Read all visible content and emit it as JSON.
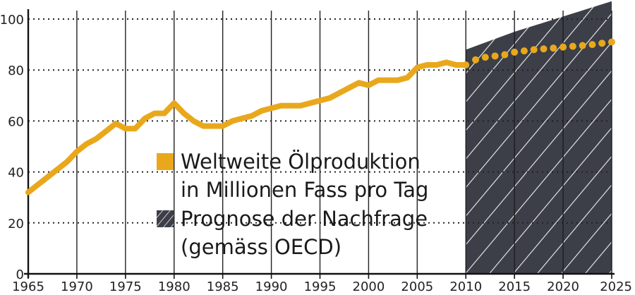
{
  "chart_data": {
    "type": "line",
    "title": "",
    "xlabel": "",
    "ylabel": "",
    "xlim": [
      1965,
      2025
    ],
    "ylim": [
      0,
      100
    ],
    "x_ticks": [
      1965,
      1970,
      1975,
      1980,
      1985,
      1990,
      1995,
      2000,
      2005,
      2010,
      2015,
      2020,
      2025
    ],
    "y_ticks": [
      0,
      20,
      40,
      60,
      80,
      100
    ],
    "grid": {
      "vertical": "solid",
      "horizontal": "dotted"
    },
    "legend_position": "center",
    "series": [
      {
        "name": "Weltweite Ölproduktion in Millionen Fass pro Tag",
        "style": "solid",
        "color": "#e9a81c",
        "x": [
          1965,
          1966,
          1967,
          1968,
          1969,
          1970,
          1971,
          1972,
          1973,
          1974,
          1975,
          1976,
          1977,
          1978,
          1979,
          1980,
          1981,
          1982,
          1983,
          1984,
          1985,
          1986,
          1987,
          1988,
          1989,
          1990,
          1991,
          1992,
          1993,
          1994,
          1995,
          1996,
          1997,
          1998,
          1999,
          2000,
          2001,
          2002,
          2003,
          2004,
          2005,
          2006,
          2007,
          2008,
          2009,
          2010
        ],
        "y": [
          32,
          35,
          38,
          41,
          44,
          48,
          51,
          53,
          56,
          59,
          57,
          57,
          61,
          63,
          63,
          67,
          63,
          60,
          58,
          58,
          58,
          60,
          61,
          62,
          64,
          65,
          66,
          66,
          66,
          67,
          68,
          69,
          71,
          73,
          75,
          74,
          76,
          76,
          76,
          77,
          81,
          82,
          82,
          83,
          82,
          82
        ]
      },
      {
        "name": "Prognose der Nachfrage (gemäss OECD)",
        "style": "dotted",
        "color": "#e9a81c",
        "x": [
          2010,
          2011,
          2012,
          2013,
          2014,
          2015,
          2016,
          2017,
          2018,
          2019,
          2020,
          2021,
          2022,
          2023,
          2024,
          2025
        ],
        "y": [
          82,
          84,
          85,
          85.5,
          86,
          87,
          87.5,
          88,
          88.3,
          88.6,
          89,
          89.3,
          89.6,
          90,
          90.5,
          91
        ]
      }
    ],
    "forecast_area": {
      "name": "Prognose der Nachfrage",
      "fill": "#3c3f48",
      "hatch": "#f2f2f2",
      "x": [
        2010,
        2015,
        2020,
        2025
      ],
      "y_upper": [
        88,
        95,
        101,
        107
      ]
    },
    "legend": [
      {
        "label_lines": [
          "Weltweite Ölproduktion",
          "in Millionen Fass pro Tag"
        ],
        "marker": "square",
        "color": "#e9a81c"
      },
      {
        "label_lines": [
          "Prognose der Nachfrage",
          "(gemäss OECD)"
        ],
        "marker": "hatched-square",
        "color": "#3c3f48"
      }
    ]
  }
}
